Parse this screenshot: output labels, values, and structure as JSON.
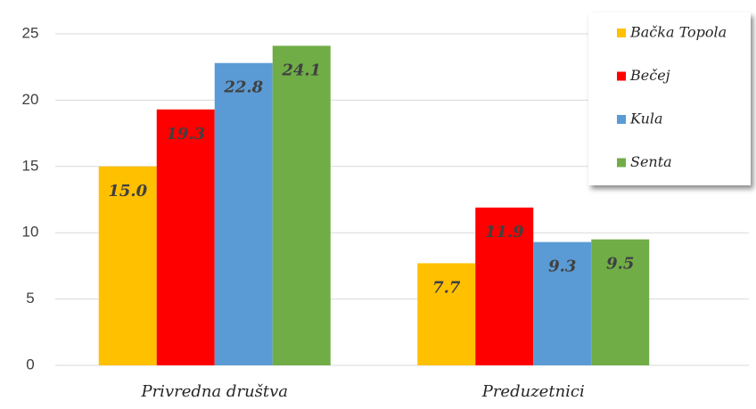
{
  "chart_data": {
    "type": "bar",
    "categories": [
      "Privredna društva",
      "Preduzetnici"
    ],
    "series": [
      {
        "name": "Bačka Topola",
        "color": "#ffc000",
        "values": [
          15.0,
          7.7
        ],
        "value_labels": [
          "15.0",
          "7.7"
        ]
      },
      {
        "name": "Bečej",
        "color": "#ff0000",
        "values": [
          19.3,
          11.9
        ],
        "value_labels": [
          "19.3",
          "11.9"
        ]
      },
      {
        "name": "Kula",
        "color": "#5b9bd5",
        "values": [
          22.8,
          9.3
        ],
        "value_labels": [
          "22.8",
          "9.3"
        ]
      },
      {
        "name": "Senta",
        "color": "#70ad47",
        "values": [
          24.1,
          9.5
        ],
        "value_labels": [
          "24.1",
          "9.5"
        ]
      }
    ],
    "ylim": [
      0,
      25
    ],
    "yticks": [
      0,
      5,
      10,
      15,
      20,
      25
    ],
    "grid": true,
    "legend": "upper right"
  }
}
